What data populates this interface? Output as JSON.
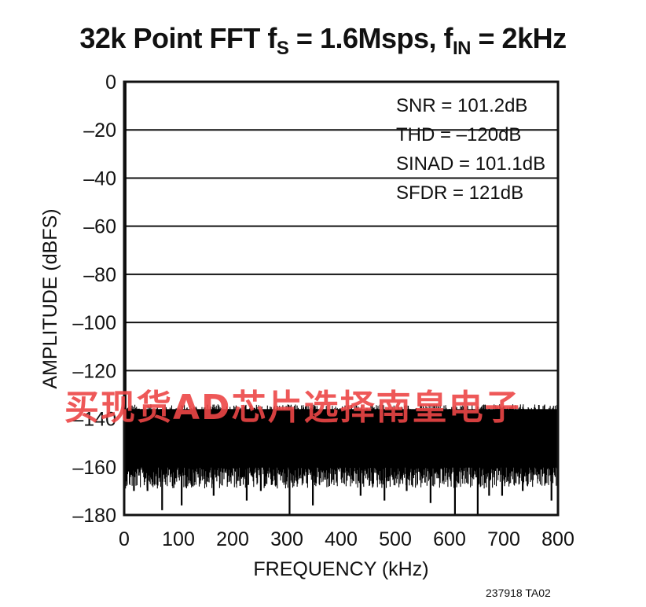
{
  "title": {
    "main": "32k Point FFT f",
    "fs_sub": "S",
    "middle": " = 1.6Msps, f",
    "fin_sub": "IN",
    "end": " = 2kHz"
  },
  "figure_id": "237918 TA02",
  "watermark": "买现货AD芯片选择南皇电子",
  "chart_data": {
    "type": "line",
    "xlabel": "FREQUENCY (kHz)",
    "ylabel": "AMPLITUDE (dBFS)",
    "xlim": [
      0,
      800
    ],
    "ylim": [
      -180,
      0
    ],
    "x_ticks": [
      0,
      100,
      200,
      300,
      400,
      500,
      600,
      700,
      800
    ],
    "x_tick_labels": [
      "0",
      "100",
      "200",
      "300",
      "400",
      "500",
      "600",
      "700",
      "800"
    ],
    "y_ticks": [
      0,
      -20,
      -40,
      -60,
      -80,
      -100,
      -120,
      -140,
      -160,
      -180
    ],
    "y_tick_labels": [
      "0",
      "–20",
      "–40",
      "–60",
      "–80",
      "–100",
      "–120",
      "–140",
      "–160",
      "–180"
    ],
    "grid": "horizontal",
    "annotations": [
      "SNR = 101.2dB",
      "THD = –120dB",
      "SINAD = 101.1dB",
      "SFDR = 121dB"
    ],
    "series": [
      {
        "values_description_note": "",
        "noise_floor_top_dBFS": -138,
        "noise_floor_bottom_dBFS": -160,
        "fundamental": {
          "x": 2,
          "y": 0
        },
        "spurs": [
          {
            "x": 2,
            "y": -123
          },
          {
            "x": 18,
            "y": -170
          },
          {
            "x": 43,
            "y": -170
          },
          {
            "x": 70,
            "y": -178
          },
          {
            "x": 106,
            "y": -176
          },
          {
            "x": 165,
            "y": -172
          },
          {
            "x": 226,
            "y": -174
          },
          {
            "x": 252,
            "y": -170
          },
          {
            "x": 305,
            "y": -180
          },
          {
            "x": 348,
            "y": -176
          },
          {
            "x": 436,
            "y": -172
          },
          {
            "x": 480,
            "y": -174
          },
          {
            "x": 521,
            "y": -170
          },
          {
            "x": 565,
            "y": -175
          },
          {
            "x": 610,
            "y": -180
          },
          {
            "x": 652,
            "y": -180
          },
          {
            "x": 673,
            "y": -172
          },
          {
            "x": 697,
            "y": -172
          },
          {
            "x": 735,
            "y": -170
          },
          {
            "x": 788,
            "y": -174
          }
        ]
      }
    ]
  }
}
